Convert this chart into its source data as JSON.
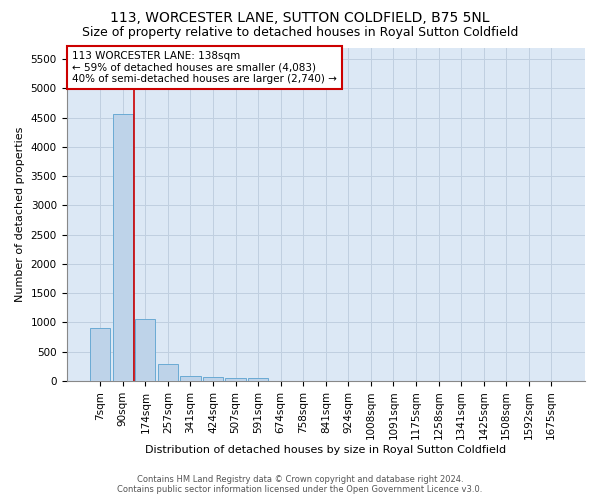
{
  "title": "113, WORCESTER LANE, SUTTON COLDFIELD, B75 5NL",
  "subtitle": "Size of property relative to detached houses in Royal Sutton Coldfield",
  "xlabel": "Distribution of detached houses by size in Royal Sutton Coldfield",
  "ylabel": "Number of detached properties",
  "footer_line1": "Contains HM Land Registry data © Crown copyright and database right 2024.",
  "footer_line2": "Contains public sector information licensed under the Open Government Licence v3.0.",
  "annotation_line1": "113 WORCESTER LANE: 138sqm",
  "annotation_line2": "← 59% of detached houses are smaller (4,083)",
  "annotation_line3": "40% of semi-detached houses are larger (2,740) →",
  "bar_categories": [
    "7sqm",
    "90sqm",
    "174sqm",
    "257sqm",
    "341sqm",
    "424sqm",
    "507sqm",
    "591sqm",
    "674sqm",
    "758sqm",
    "841sqm",
    "924sqm",
    "1008sqm",
    "1091sqm",
    "1175sqm",
    "1258sqm",
    "1341sqm",
    "1425sqm",
    "1508sqm",
    "1592sqm",
    "1675sqm"
  ],
  "bar_values": [
    900,
    4560,
    1060,
    290,
    85,
    60,
    55,
    50,
    0,
    0,
    0,
    0,
    0,
    0,
    0,
    0,
    0,
    0,
    0,
    0,
    0
  ],
  "bar_color": "#bed3e9",
  "bar_edge_color": "#6aaad4",
  "vline_color": "#cc0000",
  "vline_x": 1.5,
  "annotation_box_edge_color": "#cc0000",
  "ylim_max": 5700,
  "yticks": [
    0,
    500,
    1000,
    1500,
    2000,
    2500,
    3000,
    3500,
    4000,
    4500,
    5000,
    5500
  ],
  "bg_color": "#dce8f5",
  "grid_color": "#c0cfe0",
  "title_fontsize": 10,
  "subtitle_fontsize": 9,
  "label_fontsize": 8,
  "tick_fontsize": 7.5,
  "annot_fontsize": 7.5,
  "footer_fontsize": 6
}
